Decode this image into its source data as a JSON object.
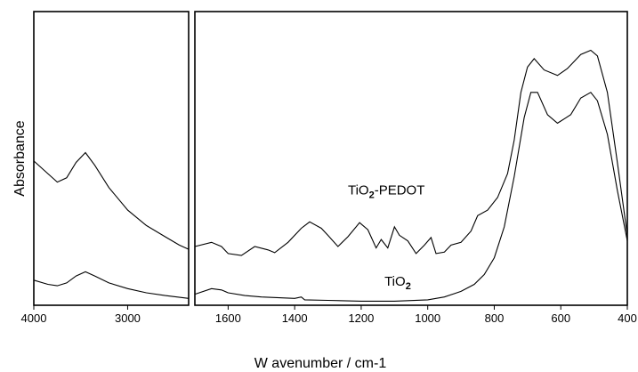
{
  "chart_data": {
    "type": "line",
    "xlabel": "W avenumber / cm-1",
    "ylabel": "Absorbance",
    "x_reversed": true,
    "grid": false,
    "legend": "none",
    "panels": [
      {
        "name": "high-wavenumber",
        "xlim": [
          4000,
          2350
        ],
        "ticks": [
          4000,
          3000
        ],
        "tick_labels": [
          "4000",
          "3000"
        ]
      },
      {
        "name": "low-wavenumber",
        "xlim": [
          1700,
          400
        ],
        "ticks": [
          1600,
          1400,
          1200,
          1000,
          800,
          600,
          400
        ],
        "tick_labels": [
          "1600",
          "1400",
          "1200",
          "1000",
          "800",
          "600",
          "400"
        ]
      }
    ],
    "ylim": [
      0,
      1
    ],
    "series": [
      {
        "label_main": "TiO",
        "label_sub": "2",
        "label_suffix": "-PEDOT",
        "label_x": 1240,
        "label_y": 0.385,
        "panel_left": [
          [
            4000,
            0.505
          ],
          [
            3850,
            0.46
          ],
          [
            3750,
            0.43
          ],
          [
            3650,
            0.445
          ],
          [
            3550,
            0.5
          ],
          [
            3450,
            0.535
          ],
          [
            3350,
            0.49
          ],
          [
            3200,
            0.41
          ],
          [
            3000,
            0.33
          ],
          [
            2800,
            0.275
          ],
          [
            2600,
            0.235
          ],
          [
            2450,
            0.205
          ],
          [
            2350,
            0.19
          ]
        ],
        "panel_right": [
          [
            1700,
            0.2
          ],
          [
            1650,
            0.215
          ],
          [
            1620,
            0.2
          ],
          [
            1600,
            0.175
          ],
          [
            1560,
            0.168
          ],
          [
            1520,
            0.2
          ],
          [
            1480,
            0.188
          ],
          [
            1460,
            0.178
          ],
          [
            1420,
            0.215
          ],
          [
            1380,
            0.265
          ],
          [
            1355,
            0.288
          ],
          [
            1320,
            0.265
          ],
          [
            1300,
            0.24
          ],
          [
            1270,
            0.2
          ],
          [
            1240,
            0.235
          ],
          [
            1205,
            0.285
          ],
          [
            1180,
            0.26
          ],
          [
            1155,
            0.195
          ],
          [
            1140,
            0.225
          ],
          [
            1120,
            0.195
          ],
          [
            1100,
            0.27
          ],
          [
            1085,
            0.24
          ],
          [
            1060,
            0.22
          ],
          [
            1035,
            0.175
          ],
          [
            1010,
            0.205
          ],
          [
            990,
            0.232
          ],
          [
            975,
            0.175
          ],
          [
            950,
            0.18
          ],
          [
            930,
            0.205
          ],
          [
            900,
            0.215
          ],
          [
            870,
            0.255
          ],
          [
            850,
            0.31
          ],
          [
            820,
            0.33
          ],
          [
            790,
            0.375
          ],
          [
            760,
            0.46
          ],
          [
            740,
            0.58
          ],
          [
            720,
            0.75
          ],
          [
            700,
            0.84
          ],
          [
            680,
            0.87
          ],
          [
            650,
            0.83
          ],
          [
            610,
            0.81
          ],
          [
            580,
            0.835
          ],
          [
            540,
            0.885
          ],
          [
            510,
            0.9
          ],
          [
            490,
            0.88
          ],
          [
            460,
            0.75
          ],
          [
            430,
            0.5
          ],
          [
            400,
            0.24
          ]
        ]
      },
      {
        "label_main": "TiO",
        "label_sub": "2",
        "label_suffix": "",
        "label_x": 1130,
        "label_y": 0.06,
        "panel_left": [
          [
            4000,
            0.08
          ],
          [
            3850,
            0.065
          ],
          [
            3750,
            0.06
          ],
          [
            3650,
            0.07
          ],
          [
            3550,
            0.095
          ],
          [
            3450,
            0.11
          ],
          [
            3350,
            0.095
          ],
          [
            3200,
            0.07
          ],
          [
            3000,
            0.05
          ],
          [
            2800,
            0.035
          ],
          [
            2600,
            0.025
          ],
          [
            2350,
            0.015
          ]
        ],
        "panel_right": [
          [
            1700,
            0.03
          ],
          [
            1650,
            0.05
          ],
          [
            1620,
            0.045
          ],
          [
            1600,
            0.035
          ],
          [
            1550,
            0.025
          ],
          [
            1500,
            0.02
          ],
          [
            1400,
            0.015
          ],
          [
            1380,
            0.02
          ],
          [
            1370,
            0.01
          ],
          [
            1300,
            0.008
          ],
          [
            1200,
            0.005
          ],
          [
            1100,
            0.005
          ],
          [
            1000,
            0.01
          ],
          [
            950,
            0.02
          ],
          [
            900,
            0.04
          ],
          [
            860,
            0.065
          ],
          [
            830,
            0.1
          ],
          [
            800,
            0.16
          ],
          [
            770,
            0.27
          ],
          [
            740,
            0.45
          ],
          [
            710,
            0.66
          ],
          [
            690,
            0.75
          ],
          [
            670,
            0.75
          ],
          [
            640,
            0.67
          ],
          [
            610,
            0.64
          ],
          [
            570,
            0.67
          ],
          [
            540,
            0.73
          ],
          [
            510,
            0.75
          ],
          [
            490,
            0.72
          ],
          [
            460,
            0.6
          ],
          [
            430,
            0.4
          ],
          [
            400,
            0.22
          ]
        ]
      }
    ]
  }
}
